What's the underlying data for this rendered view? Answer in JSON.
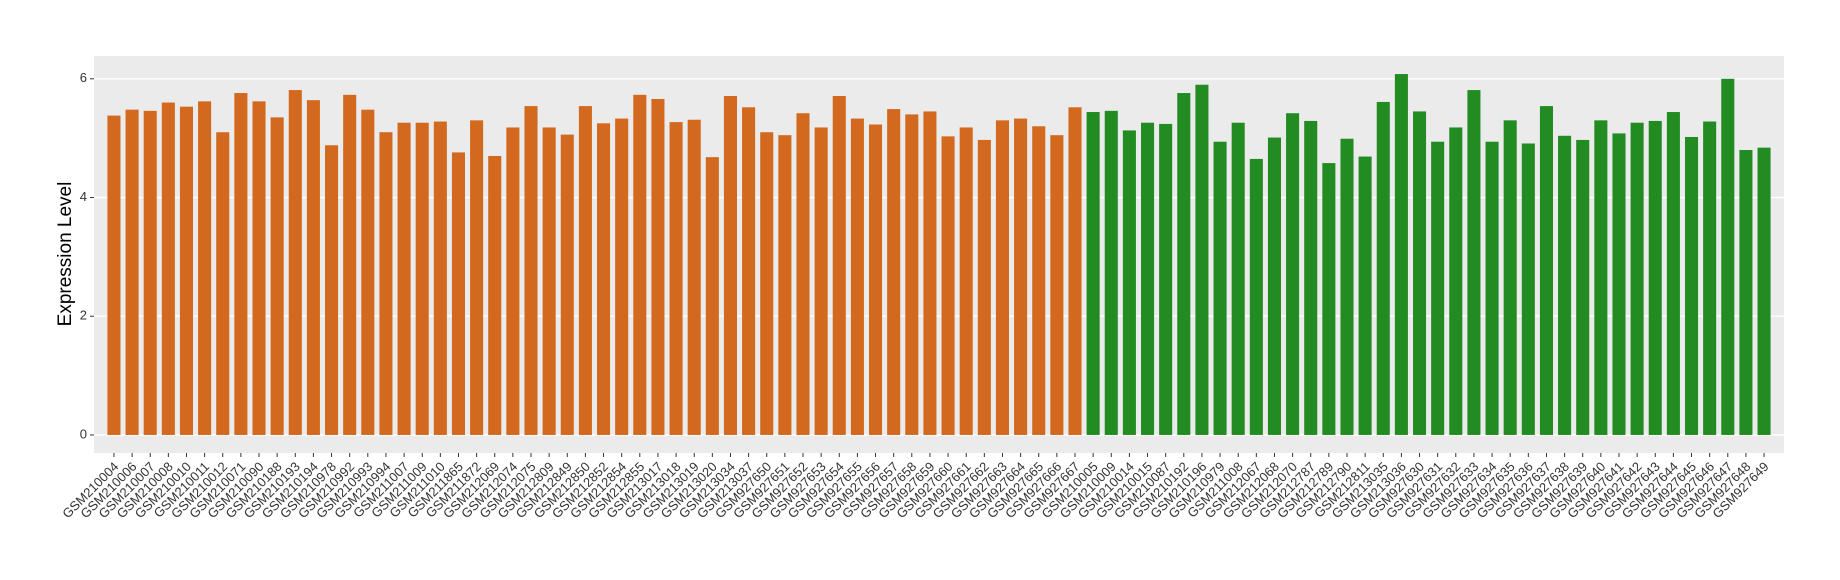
{
  "chart_data": {
    "type": "bar",
    "y_label": "Expression Level",
    "categories": [
      "GSM210004",
      "GSM210006",
      "GSM210007",
      "GSM210008",
      "GSM210010",
      "GSM210011",
      "GSM210012",
      "GSM210071",
      "GSM210090",
      "GSM210188",
      "GSM210193",
      "GSM210194",
      "GSM210978",
      "GSM210992",
      "GSM210993",
      "GSM210994",
      "GSM211007",
      "GSM211009",
      "GSM211010",
      "GSM211865",
      "GSM211872",
      "GSM212069",
      "GSM212074",
      "GSM212075",
      "GSM212809",
      "GSM212849",
      "GSM212850",
      "GSM212852",
      "GSM212854",
      "GSM212855",
      "GSM213017",
      "GSM213018",
      "GSM213019",
      "GSM213020",
      "GSM213034",
      "GSM213037",
      "GSM927650",
      "GSM927651",
      "GSM927652",
      "GSM927653",
      "GSM927654",
      "GSM927655",
      "GSM927656",
      "GSM927657",
      "GSM927658",
      "GSM927659",
      "GSM927660",
      "GSM927661",
      "GSM927662",
      "GSM927663",
      "GSM927664",
      "GSM927665",
      "GSM927666",
      "GSM927667",
      "GSM210005",
      "GSM210009",
      "GSM210014",
      "GSM210015",
      "GSM210087",
      "GSM210192",
      "GSM210196",
      "GSM210979",
      "GSM211008",
      "GSM212067",
      "GSM212068",
      "GSM212070",
      "GSM212787",
      "GSM212789",
      "GSM212790",
      "GSM212811",
      "GSM213035",
      "GSM213036",
      "GSM927630",
      "GSM927631",
      "GSM927632",
      "GSM927633",
      "GSM927634",
      "GSM927635",
      "GSM927636",
      "GSM927637",
      "GSM927638",
      "GSM927639",
      "GSM927640",
      "GSM927641",
      "GSM927642",
      "GSM927643",
      "GSM927644",
      "GSM927645",
      "GSM927646",
      "GSM927647",
      "GSM927648",
      "GSM927649"
    ],
    "values": [
      5.38,
      5.48,
      5.46,
      5.6,
      5.53,
      5.62,
      5.1,
      5.76,
      5.62,
      5.35,
      5.81,
      5.64,
      4.88,
      5.73,
      5.48,
      5.1,
      5.26,
      5.26,
      5.28,
      4.76,
      5.3,
      4.7,
      5.18,
      5.54,
      5.18,
      5.06,
      5.54,
      5.25,
      5.33,
      5.73,
      5.66,
      5.27,
      5.31,
      4.68,
      5.71,
      5.52,
      5.1,
      5.05,
      5.42,
      5.18,
      5.71,
      5.33,
      5.23,
      5.49,
      5.4,
      5.45,
      5.03,
      5.18,
      4.97,
      5.3,
      5.33,
      5.2,
      5.05,
      5.52,
      5.44,
      5.46,
      5.13,
      5.26,
      5.24,
      5.76,
      5.9,
      4.94,
      5.26,
      4.65,
      5.01,
      5.42,
      5.29,
      4.58,
      4.99,
      4.69,
      5.61,
      6.08,
      5.45,
      4.94,
      5.18,
      5.81,
      4.94,
      5.3,
      4.91,
      5.54,
      5.04,
      4.97,
      5.3,
      5.08,
      5.26,
      5.29,
      5.44,
      5.02,
      5.28,
      6.0,
      4.8,
      4.84
    ],
    "colors": [
      "#D2691E",
      "#D2691E",
      "#D2691E",
      "#D2691E",
      "#D2691E",
      "#D2691E",
      "#D2691E",
      "#D2691E",
      "#D2691E",
      "#D2691E",
      "#D2691E",
      "#D2691E",
      "#D2691E",
      "#D2691E",
      "#D2691E",
      "#D2691E",
      "#D2691E",
      "#D2691E",
      "#D2691E",
      "#D2691E",
      "#D2691E",
      "#D2691E",
      "#D2691E",
      "#D2691E",
      "#D2691E",
      "#D2691E",
      "#D2691E",
      "#D2691E",
      "#D2691E",
      "#D2691E",
      "#D2691E",
      "#D2691E",
      "#D2691E",
      "#D2691E",
      "#D2691E",
      "#D2691E",
      "#D2691E",
      "#D2691E",
      "#D2691E",
      "#D2691E",
      "#D2691E",
      "#D2691E",
      "#D2691E",
      "#D2691E",
      "#D2691E",
      "#D2691E",
      "#D2691E",
      "#D2691E",
      "#D2691E",
      "#D2691E",
      "#D2691E",
      "#D2691E",
      "#D2691E",
      "#D2691E",
      "#228B22",
      "#228B22",
      "#228B22",
      "#228B22",
      "#228B22",
      "#228B22",
      "#228B22",
      "#228B22",
      "#228B22",
      "#228B22",
      "#228B22",
      "#228B22",
      "#228B22",
      "#228B22",
      "#228B22",
      "#228B22",
      "#228B22",
      "#228B22",
      "#228B22",
      "#228B22",
      "#228B22",
      "#228B22",
      "#228B22",
      "#228B22",
      "#228B22",
      "#228B22",
      "#228B22",
      "#228B22",
      "#228B22",
      "#228B22",
      "#228B22",
      "#228B22",
      "#228B22",
      "#228B22",
      "#228B22",
      "#228B22",
      "#228B22",
      "#228B22"
    ],
    "ylim": [
      -0.304,
      6.384
    ],
    "yticks": [
      0,
      2,
      4,
      6
    ],
    "grid": true
  }
}
